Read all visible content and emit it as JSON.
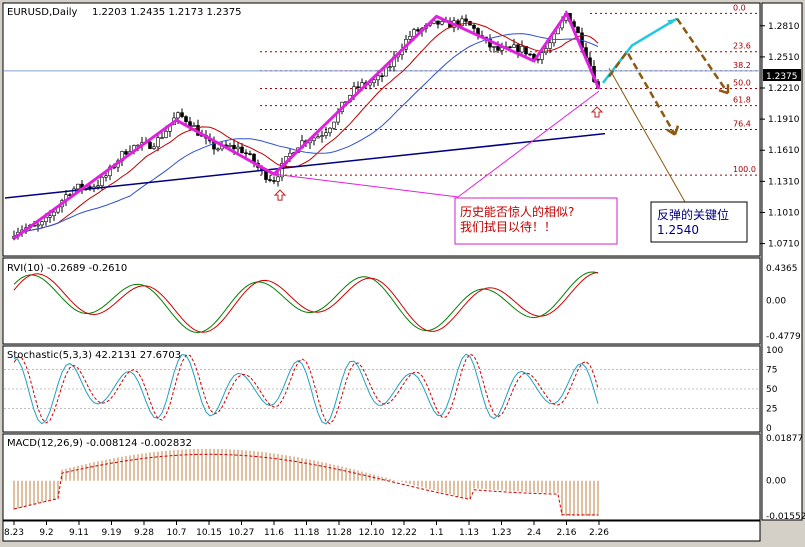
{
  "main": {
    "header": {
      "symbol": "EURUSD,Daily",
      "ohlc": "1.2203 1.2435 1.2173 1.2375"
    },
    "price_ticks": [
      "1.2810",
      "1.2510",
      "1.2210",
      "1.1910",
      "1.1610",
      "1.1310",
      "1.1010",
      "1.0710"
    ],
    "current_price": "1.2375",
    "fib_levels": [
      {
        "label": "0.0",
        "price": 1.293
      },
      {
        "label": "23.6",
        "price": 1.256
      },
      {
        "label": "38.2",
        "price": 1.2376
      },
      {
        "label": "50.0",
        "price": 1.2205
      },
      {
        "label": "61.8",
        "price": 1.204
      },
      {
        "label": "76.4",
        "price": 1.181
      },
      {
        "label": "100.0",
        "price": 1.137
      }
    ],
    "annotation_1": {
      "line1": "历史能否惊人的相似?",
      "line2": "我们拭目以待！！"
    },
    "annotation_2": {
      "line1": "反弹的关键位",
      "line2": "1.2540"
    }
  },
  "rvi": {
    "label": "RVI(10)  -0.2689  -0.2610",
    "ticks": [
      "0.4365",
      "0.00",
      "-0.4779"
    ]
  },
  "stochastic": {
    "label": "Stochastic(5,3,3)  42.2131  27.6703",
    "ticks": [
      "100",
      "75",
      "50",
      "25",
      "0"
    ]
  },
  "macd": {
    "label": "MACD(12,26,9)  -0.008124  -0.002832",
    "ticks": [
      "0.01877",
      "0.00",
      "-0.01552"
    ]
  },
  "x_axis": {
    "dates": [
      "8.23",
      "9.2",
      "9.11",
      "9.19",
      "9.28",
      "10.7",
      "10.15",
      "10.27",
      "11.6",
      "11.18",
      "11.28",
      "12.10",
      "12.22",
      "1.1",
      "1.13",
      "1.23",
      "2.4",
      "2.16",
      "2.26"
    ]
  },
  "colors": {
    "up": "#000000",
    "down": "#000000",
    "zigzag": "#e020e0",
    "ma_red": "#c00000",
    "ma_blue": "#3050d0",
    "ma_navy": "#000080",
    "projection_brown": "#8b5a10",
    "projection_cyan": "#20c8e0",
    "fib": "#a00000",
    "annotation": "#c00000",
    "annotation2": "#000080"
  },
  "chart_data": [
    {
      "type": "candlestick",
      "title": "EURUSD,Daily",
      "ohlc_last": {
        "open": 1.2203,
        "high": 1.2435,
        "low": 1.2173,
        "close": 1.2375
      },
      "x": [
        "8.23",
        "9.2",
        "9.11",
        "9.19",
        "9.28",
        "10.7",
        "10.15",
        "10.27",
        "11.6",
        "11.18",
        "11.28",
        "12.10",
        "12.22",
        "1.1",
        "1.13",
        "1.23",
        "2.4",
        "2.16",
        "2.26"
      ],
      "close": [
        1.085,
        1.09,
        1.115,
        1.138,
        1.16,
        1.18,
        1.165,
        1.158,
        1.138,
        1.16,
        1.195,
        1.218,
        1.25,
        1.27,
        1.26,
        1.248,
        1.276,
        1.262,
        1.2375
      ],
      "zigzag": [
        {
          "x": "8.23",
          "y": 1.076
        },
        {
          "x": "10.7",
          "y": 1.19
        },
        {
          "x": "11.6",
          "y": 1.138
        },
        {
          "x": "1.1",
          "y": 1.29
        },
        {
          "x": "2.4",
          "y": 1.247
        },
        {
          "x": "2.16",
          "y": 1.293
        },
        {
          "x": "2.26",
          "y": 1.22
        }
      ],
      "ylim": [
        1.06,
        1.302
      ]
    },
    {
      "type": "line",
      "title": "RVI(10)",
      "series": [
        {
          "name": "RVI",
          "last": -0.2689
        },
        {
          "name": "Signal",
          "last": -0.261
        }
      ],
      "ylim": [
        -0.4779,
        0.4365
      ]
    },
    {
      "type": "line",
      "title": "Stochastic(5,3,3)",
      "series": [
        {
          "name": "%K",
          "last": 42.2131
        },
        {
          "name": "%D",
          "last": 27.6703
        }
      ],
      "ylim": [
        0,
        100
      ]
    },
    {
      "type": "bar",
      "title": "MACD(12,26,9)",
      "series": [
        {
          "name": "MACD",
          "last": -0.008124
        },
        {
          "name": "Signal",
          "last": -0.002832
        }
      ],
      "ylim": [
        -0.01552,
        0.01877
      ]
    }
  ]
}
